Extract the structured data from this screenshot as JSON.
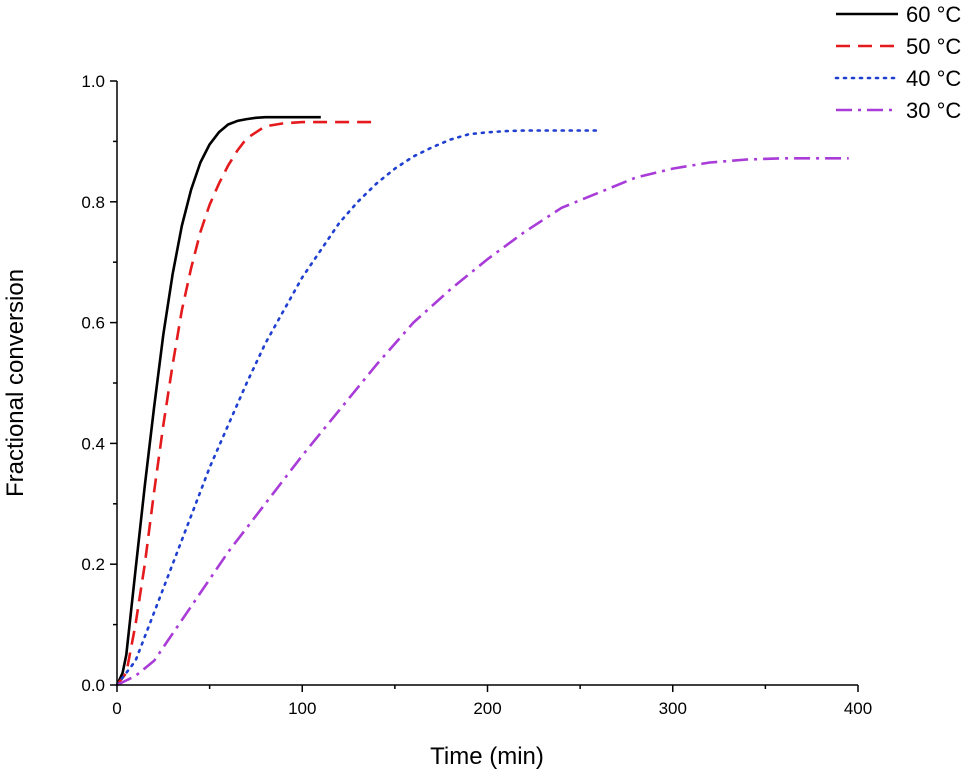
{
  "chart_data": {
    "type": "line",
    "title": "",
    "xlabel": "Time (min)",
    "ylabel": "Fractional conversion",
    "xlim": [
      0,
      400
    ],
    "ylim": [
      0,
      1.0
    ],
    "xticks": [
      0,
      100,
      200,
      300,
      400
    ],
    "xtick_labels": [
      "0",
      "100",
      "200",
      "300",
      "400"
    ],
    "yticks": [
      0.0,
      0.2,
      0.4,
      0.6,
      0.8,
      1.0
    ],
    "ytick_labels": [
      "0.0",
      "0.2",
      "0.4",
      "0.6",
      "0.8",
      "1.0"
    ],
    "grid": false,
    "legend_position": "top-right",
    "series": [
      {
        "name": "60 °C",
        "color": "#000000",
        "dash": "solid",
        "x": [
          0,
          3,
          5,
          10,
          15,
          20,
          25,
          30,
          35,
          40,
          45,
          50,
          55,
          60,
          65,
          70,
          75,
          80,
          90,
          100,
          110
        ],
        "y": [
          0,
          0.02,
          0.05,
          0.19,
          0.33,
          0.46,
          0.58,
          0.68,
          0.76,
          0.82,
          0.865,
          0.895,
          0.915,
          0.928,
          0.934,
          0.937,
          0.939,
          0.94,
          0.94,
          0.94,
          0.94
        ]
      },
      {
        "name": "50 °C",
        "color": "#e41a1c",
        "dash": "dashed",
        "x": [
          0,
          5,
          10,
          15,
          20,
          25,
          30,
          35,
          40,
          45,
          50,
          55,
          60,
          65,
          70,
          80,
          90,
          100,
          110,
          120,
          140
        ],
        "y": [
          0,
          0.02,
          0.1,
          0.2,
          0.32,
          0.43,
          0.53,
          0.62,
          0.69,
          0.75,
          0.795,
          0.83,
          0.86,
          0.885,
          0.905,
          0.925,
          0.93,
          0.932,
          0.932,
          0.932,
          0.932
        ]
      },
      {
        "name": "40 °C",
        "color": "#1f3fd1",
        "dash": "dotted",
        "x": [
          0,
          10,
          20,
          30,
          40,
          50,
          60,
          70,
          80,
          90,
          100,
          110,
          120,
          130,
          140,
          150,
          160,
          170,
          180,
          190,
          200,
          210,
          220,
          240,
          260
        ],
        "y": [
          0,
          0.04,
          0.12,
          0.2,
          0.28,
          0.36,
          0.43,
          0.5,
          0.565,
          0.62,
          0.675,
          0.72,
          0.765,
          0.8,
          0.83,
          0.855,
          0.875,
          0.89,
          0.903,
          0.912,
          0.915,
          0.917,
          0.918,
          0.918,
          0.918
        ]
      },
      {
        "name": "30 °C",
        "color": "#a93bd8",
        "dash": "dashdot",
        "x": [
          0,
          10,
          20,
          40,
          60,
          80,
          100,
          120,
          140,
          160,
          180,
          200,
          220,
          240,
          260,
          280,
          300,
          320,
          340,
          360,
          380,
          395
        ],
        "y": [
          0,
          0.015,
          0.04,
          0.13,
          0.22,
          0.3,
          0.38,
          0.455,
          0.53,
          0.6,
          0.655,
          0.705,
          0.75,
          0.79,
          0.815,
          0.84,
          0.855,
          0.865,
          0.87,
          0.872,
          0.872,
          0.872
        ]
      }
    ]
  }
}
